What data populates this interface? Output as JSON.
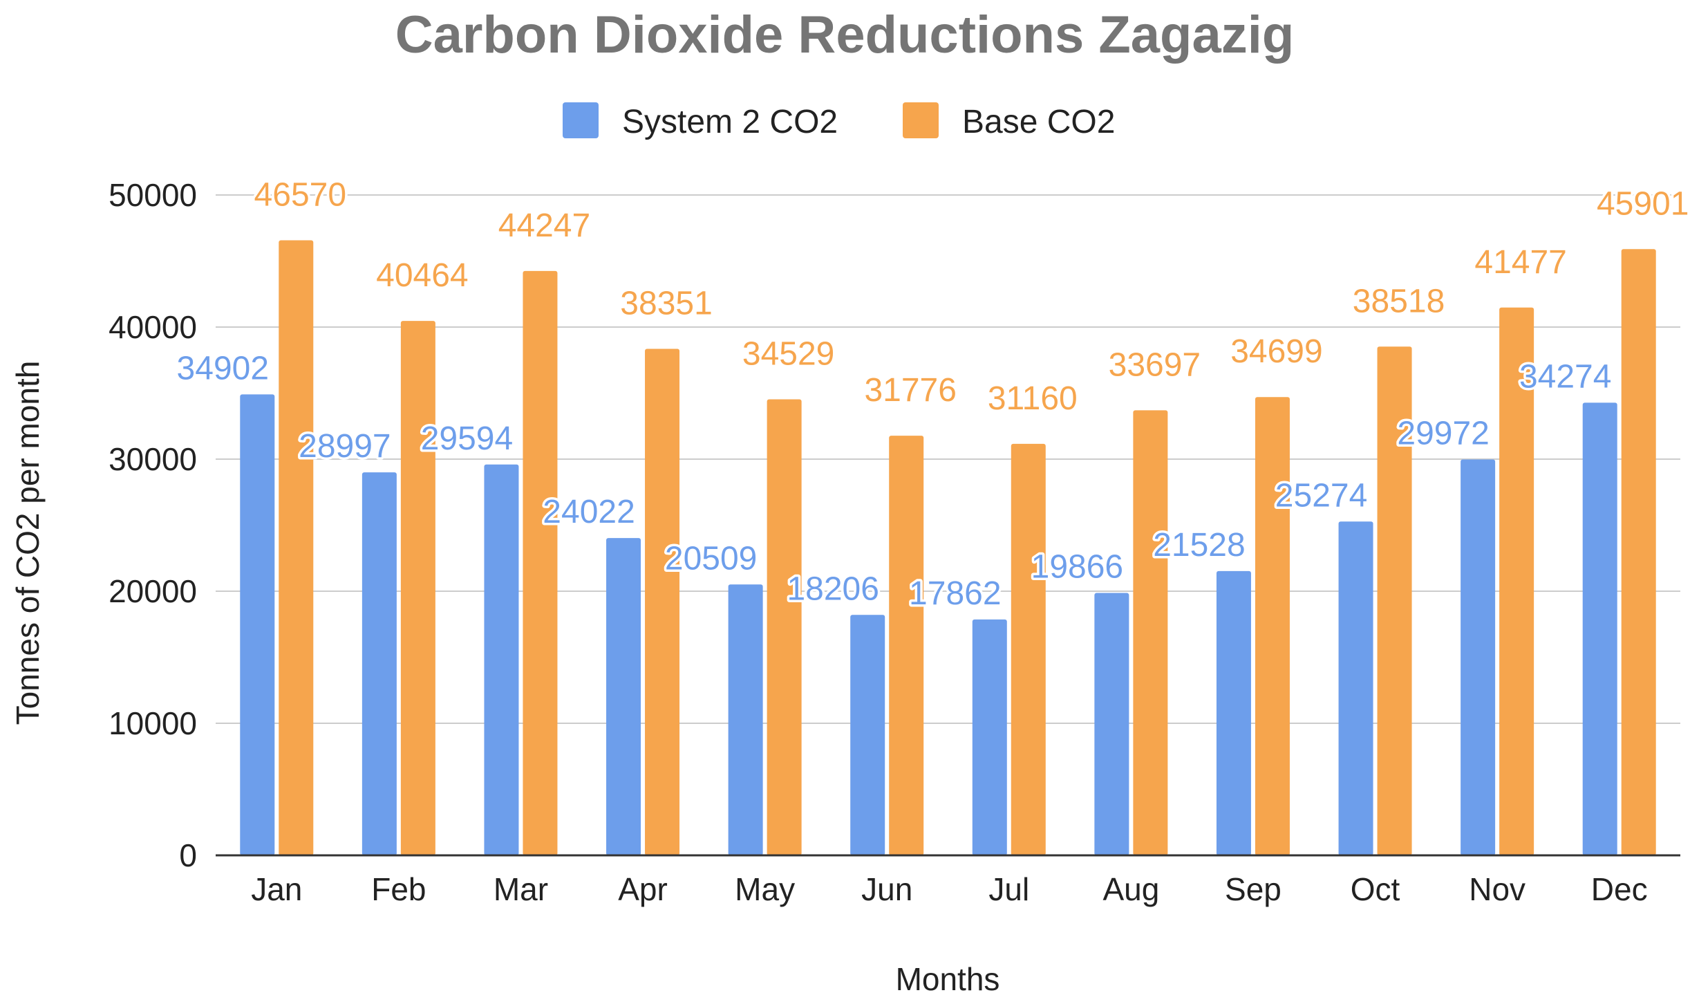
{
  "chart_data": {
    "type": "bar",
    "title": "Carbon Dioxide Reductions Zagazig",
    "xlabel": "Months",
    "ylabel": "Tonnes of CO2 per month",
    "categories": [
      "Jan",
      "Feb",
      "Mar",
      "Apr",
      "May",
      "Jun",
      "Jul",
      "Aug",
      "Sep",
      "Oct",
      "Nov",
      "Dec"
    ],
    "series": [
      {
        "name": "System 2 CO2",
        "color": "#6d9eeb",
        "values": [
          34902,
          28997,
          29594,
          24022,
          20509,
          18206,
          17862,
          19866,
          21528,
          25274,
          29972,
          34274
        ]
      },
      {
        "name": "Base CO2",
        "color": "#f6a54d",
        "values": [
          46570,
          40464,
          44247,
          38351,
          34529,
          31776,
          31160,
          33697,
          34699,
          38518,
          41477,
          45901
        ]
      }
    ],
    "ylim": [
      0,
      50000
    ],
    "yticks": [
      0,
      10000,
      20000,
      30000,
      40000,
      50000
    ],
    "grid": true,
    "legend_position": "top"
  }
}
